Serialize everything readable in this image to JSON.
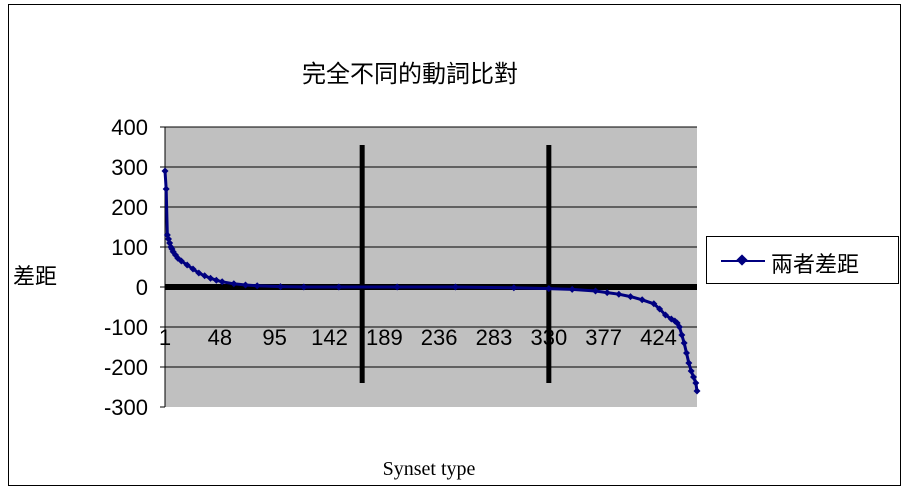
{
  "chart_data": {
    "type": "line",
    "title": "完全不同的動詞比對",
    "xlabel": "Synset type",
    "ylabel": "差距",
    "ylim": [
      -300,
      400
    ],
    "yticks": [
      400,
      300,
      200,
      100,
      0,
      -100,
      -200,
      -300
    ],
    "xticks": [
      "1",
      "48",
      "95",
      "142",
      "189",
      "236",
      "283",
      "330",
      "377",
      "424"
    ],
    "n_points": 457,
    "grid": true,
    "legend": "right",
    "colors": {
      "series": "#000080",
      "plot_bg": "#c0c0c0",
      "grid": "#000000"
    },
    "vertical_markers": [
      170,
      330
    ],
    "series": [
      {
        "name": "兩者差距",
        "x": [
          1,
          2,
          3,
          4,
          5,
          6,
          7,
          8,
          10,
          12,
          15,
          20,
          25,
          30,
          35,
          40,
          45,
          50,
          60,
          70,
          80,
          100,
          120,
          150,
          200,
          250,
          300,
          330,
          350,
          370,
          380,
          390,
          400,
          410,
          420,
          425,
          430,
          435,
          438,
          440,
          442,
          444,
          446,
          448,
          450,
          452,
          454,
          456,
          457
        ],
        "y": [
          290,
          245,
          130,
          120,
          110,
          100,
          95,
          88,
          80,
          72,
          65,
          55,
          45,
          35,
          28,
          22,
          17,
          13,
          8,
          5,
          3,
          1,
          0,
          0,
          0,
          0,
          -2,
          -4,
          -6,
          -10,
          -14,
          -18,
          -24,
          -32,
          -42,
          -55,
          -70,
          -80,
          -85,
          -90,
          -100,
          -120,
          -140,
          -165,
          -190,
          -210,
          -225,
          -240,
          -260
        ]
      }
    ]
  }
}
